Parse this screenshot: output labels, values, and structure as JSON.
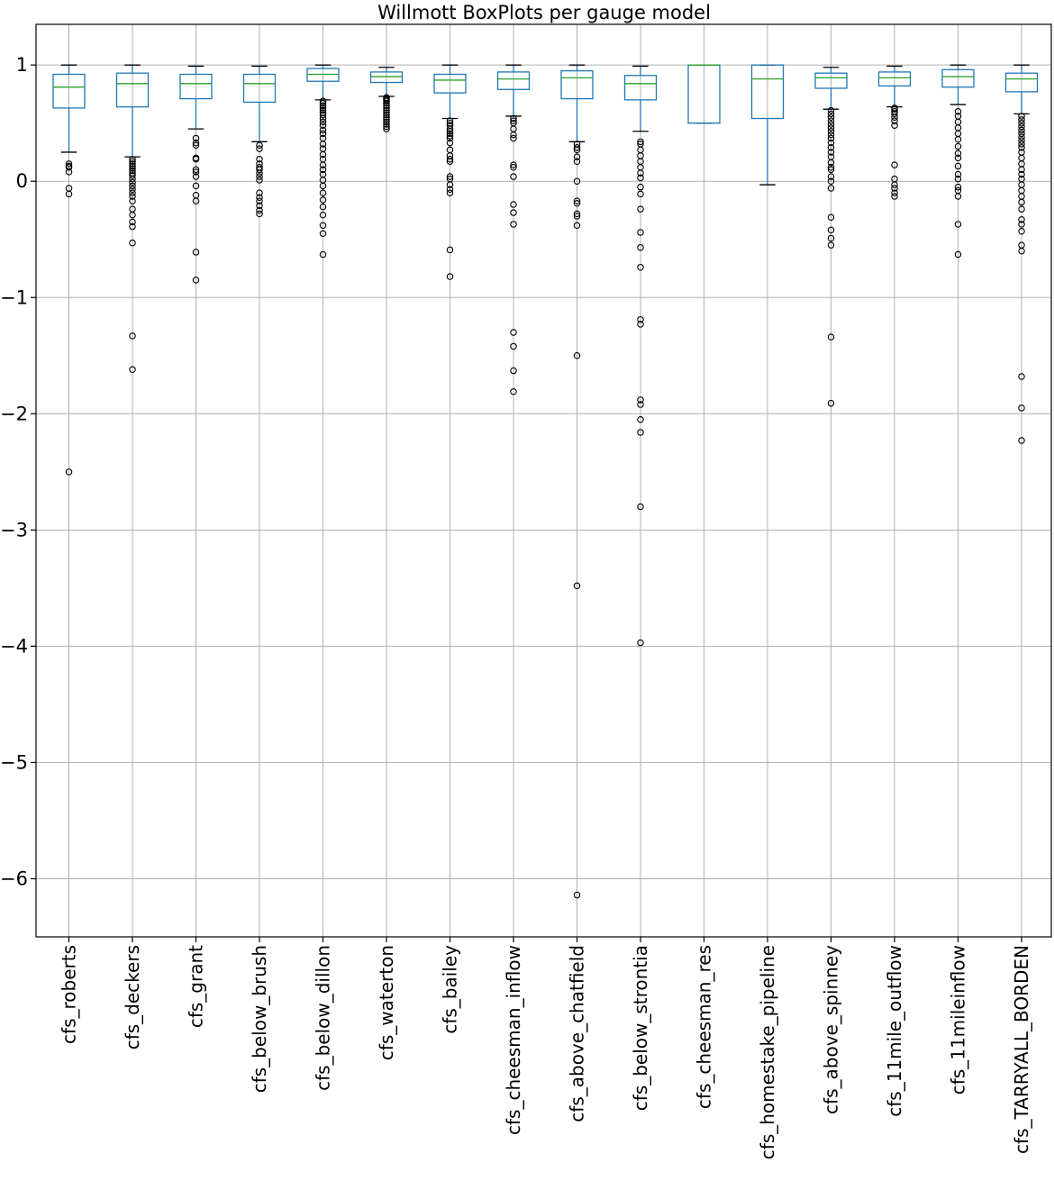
{
  "chart_data": {
    "type": "box",
    "title": "Willmott BoxPlots per gauge model",
    "xlabel": "",
    "ylabel": "",
    "ylim": [
      -6.5,
      1.35
    ],
    "yticks": [
      1,
      0,
      -1,
      -2,
      -3,
      -4,
      -5,
      -6
    ],
    "ytick_labels": [
      "1",
      "0",
      "−1",
      "−2",
      "−3",
      "−4",
      "−5",
      "−6"
    ],
    "grid": true,
    "colors": {
      "box": "#1f77b4",
      "median": "#2ca02c",
      "whisker": "#1f77b4",
      "cap": "#000000",
      "outlier": "#000000",
      "grid": "#b0b0b0"
    },
    "categories": [
      "cfs_roberts",
      "cfs_deckers",
      "cfs_grant",
      "cfs_below_brush",
      "cfs_below_dillon",
      "cfs_waterton",
      "cfs_bailey",
      "cfs_cheesman_inflow",
      "cfs_above_chatfield",
      "cfs_below_strontia",
      "cfs_cheesman_res",
      "cfs_homestake_pipeline",
      "cfs_above_spinney",
      "cfs_11mile_outflow",
      "cfs_11mileinflow",
      "cfs_TARRYALL_BORDEN"
    ],
    "boxes": [
      {
        "whislo": 0.25,
        "q1": 0.63,
        "med": 0.81,
        "q3": 0.92,
        "whishi": 1.0,
        "fliers": [
          0.15,
          0.13,
          0.12,
          0.08,
          -0.06,
          -0.11,
          -2.5
        ]
      },
      {
        "whislo": 0.21,
        "q1": 0.64,
        "med": 0.84,
        "q3": 0.93,
        "whishi": 1.0,
        "fliers": [
          0.19,
          0.17,
          0.15,
          0.13,
          0.11,
          0.09,
          0.07,
          0.05,
          0.02,
          -0.01,
          -0.04,
          -0.07,
          -0.1,
          -0.13,
          -0.17,
          -0.24,
          -0.29,
          -0.35,
          -0.39,
          -0.53,
          -1.33,
          -1.62
        ]
      },
      {
        "whislo": 0.45,
        "q1": 0.71,
        "med": 0.84,
        "q3": 0.92,
        "whishi": 0.99,
        "fliers": [
          0.37,
          0.33,
          0.31,
          0.2,
          0.19,
          0.1,
          0.08,
          0.04,
          -0.04,
          -0.12,
          -0.17,
          -0.61,
          -0.85
        ]
      },
      {
        "whislo": 0.34,
        "q1": 0.68,
        "med": 0.84,
        "q3": 0.92,
        "whishi": 0.99,
        "fliers": [
          0.31,
          0.28,
          0.19,
          0.15,
          0.12,
          0.1,
          0.07,
          0.04,
          0.01,
          -0.1,
          -0.14,
          -0.17,
          -0.21,
          -0.25,
          -0.28
        ]
      },
      {
        "whislo": 0.7,
        "q1": 0.86,
        "med": 0.92,
        "q3": 0.97,
        "whishi": 1.0,
        "fliers": [
          0.69,
          0.67,
          0.65,
          0.63,
          0.61,
          0.59,
          0.57,
          0.54,
          0.51,
          0.48,
          0.44,
          0.41,
          0.37,
          0.32,
          0.28,
          0.23,
          0.19,
          0.14,
          0.1,
          0.06,
          0.01,
          -0.04,
          -0.1,
          -0.16,
          -0.22,
          -0.29,
          -0.38,
          -0.45,
          -0.63
        ]
      },
      {
        "whislo": 0.73,
        "q1": 0.85,
        "med": 0.9,
        "q3": 0.94,
        "whishi": 0.98,
        "fliers": [
          0.72,
          0.71,
          0.7,
          0.69,
          0.67,
          0.65,
          0.63,
          0.61,
          0.59,
          0.57,
          0.55,
          0.53,
          0.51,
          0.49,
          0.47,
          0.45
        ]
      },
      {
        "whislo": 0.54,
        "q1": 0.76,
        "med": 0.87,
        "q3": 0.92,
        "whishi": 1.0,
        "fliers": [
          0.52,
          0.5,
          0.48,
          0.45,
          0.43,
          0.41,
          0.39,
          0.37,
          0.33,
          0.27,
          0.22,
          0.19,
          0.17,
          0.04,
          0.02,
          -0.03,
          -0.07,
          -0.1,
          -0.59,
          -0.82
        ]
      },
      {
        "whislo": 0.56,
        "q1": 0.79,
        "med": 0.88,
        "q3": 0.94,
        "whishi": 1.0,
        "fliers": [
          0.54,
          0.52,
          0.5,
          0.45,
          0.4,
          0.37,
          0.14,
          0.12,
          0.04,
          -0.2,
          -0.27,
          -0.37,
          -1.3,
          -1.42,
          -1.63,
          -1.81
        ]
      },
      {
        "whislo": 0.34,
        "q1": 0.71,
        "med": 0.89,
        "q3": 0.95,
        "whishi": 1.0,
        "fliers": [
          0.32,
          0.29,
          0.27,
          0.21,
          0.17,
          0.0,
          -0.17,
          -0.19,
          -0.28,
          -0.3,
          -0.38,
          -1.5,
          -3.48,
          -6.14
        ]
      },
      {
        "whislo": 0.43,
        "q1": 0.7,
        "med": 0.84,
        "q3": 0.91,
        "whishi": 0.99,
        "fliers": [
          0.34,
          0.32,
          0.27,
          0.22,
          0.17,
          0.12,
          0.07,
          0.03,
          -0.05,
          -0.11,
          -0.24,
          -0.44,
          -0.57,
          -0.74,
          -1.19,
          -1.23,
          -1.88,
          -1.92,
          -2.05,
          -2.16,
          -2.8,
          -3.97
        ]
      },
      {
        "whislo": 0.5,
        "q1": 0.5,
        "med": 1.0,
        "q3": 1.0,
        "whishi": 1.0,
        "fliers": []
      },
      {
        "whislo": -0.03,
        "q1": 0.54,
        "med": 0.88,
        "q3": 1.0,
        "whishi": 1.0,
        "fliers": []
      },
      {
        "whislo": 0.62,
        "q1": 0.8,
        "med": 0.89,
        "q3": 0.93,
        "whishi": 0.98,
        "fliers": [
          0.61,
          0.58,
          0.55,
          0.52,
          0.49,
          0.46,
          0.43,
          0.4,
          0.37,
          0.33,
          0.29,
          0.25,
          0.21,
          0.16,
          0.12,
          0.1,
          0.04,
          0.0,
          -0.06,
          -0.31,
          -0.42,
          -0.49,
          -0.55,
          -1.34,
          -1.91
        ]
      },
      {
        "whislo": 0.64,
        "q1": 0.82,
        "med": 0.89,
        "q3": 0.94,
        "whishi": 0.99,
        "fliers": [
          0.63,
          0.62,
          0.6,
          0.58,
          0.55,
          0.52,
          0.48,
          0.14,
          0.02,
          -0.03,
          -0.06,
          -0.1,
          -0.13
        ]
      },
      {
        "whislo": 0.66,
        "q1": 0.81,
        "med": 0.9,
        "q3": 0.96,
        "whishi": 1.0,
        "fliers": [
          0.6,
          0.56,
          0.51,
          0.46,
          0.41,
          0.36,
          0.3,
          0.24,
          0.2,
          0.13,
          0.06,
          0.02,
          -0.05,
          -0.08,
          -0.13,
          -0.37,
          -0.63
        ]
      },
      {
        "whislo": 0.58,
        "q1": 0.77,
        "med": 0.88,
        "q3": 0.93,
        "whishi": 1.0,
        "fliers": [
          0.56,
          0.53,
          0.5,
          0.47,
          0.44,
          0.41,
          0.38,
          0.35,
          0.32,
          0.29,
          0.25,
          0.2,
          0.15,
          0.1,
          0.06,
          0.02,
          -0.03,
          -0.08,
          -0.13,
          -0.18,
          -0.24,
          -0.33,
          -0.37,
          -0.43,
          -0.55,
          -0.6,
          -1.68,
          -1.95,
          -2.23
        ]
      }
    ]
  }
}
